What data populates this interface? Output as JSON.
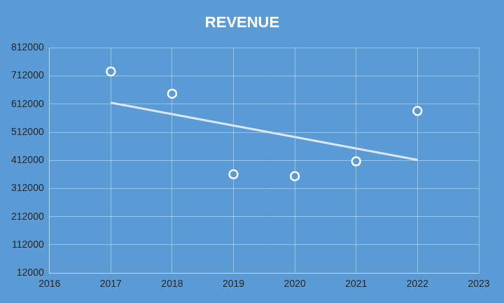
{
  "chart_data": {
    "type": "scatter",
    "title": "REVENUE",
    "x": [
      2017,
      2018,
      2019,
      2020,
      2021,
      2022
    ],
    "series": [
      {
        "values": [
          728000,
          649000,
          363000,
          356000,
          409000,
          588000
        ],
        "color": "#ffffff",
        "marker": "circle"
      },
      {
        "type": "line",
        "x": [
          2017,
          2022
        ],
        "values": [
          617000,
          414000
        ],
        "color": "#dbe7f4",
        "line_style": "solid"
      }
    ],
    "xlim": [
      2016,
      2023
    ],
    "xticks": [
      2016,
      2017,
      2018,
      2019,
      2020,
      2021,
      2022,
      2023
    ],
    "ylim": [
      12000,
      812000
    ],
    "yticks": [
      12000,
      112000,
      212000,
      312000,
      412000,
      512000,
      612000,
      712000,
      812000
    ],
    "grid": true
  }
}
